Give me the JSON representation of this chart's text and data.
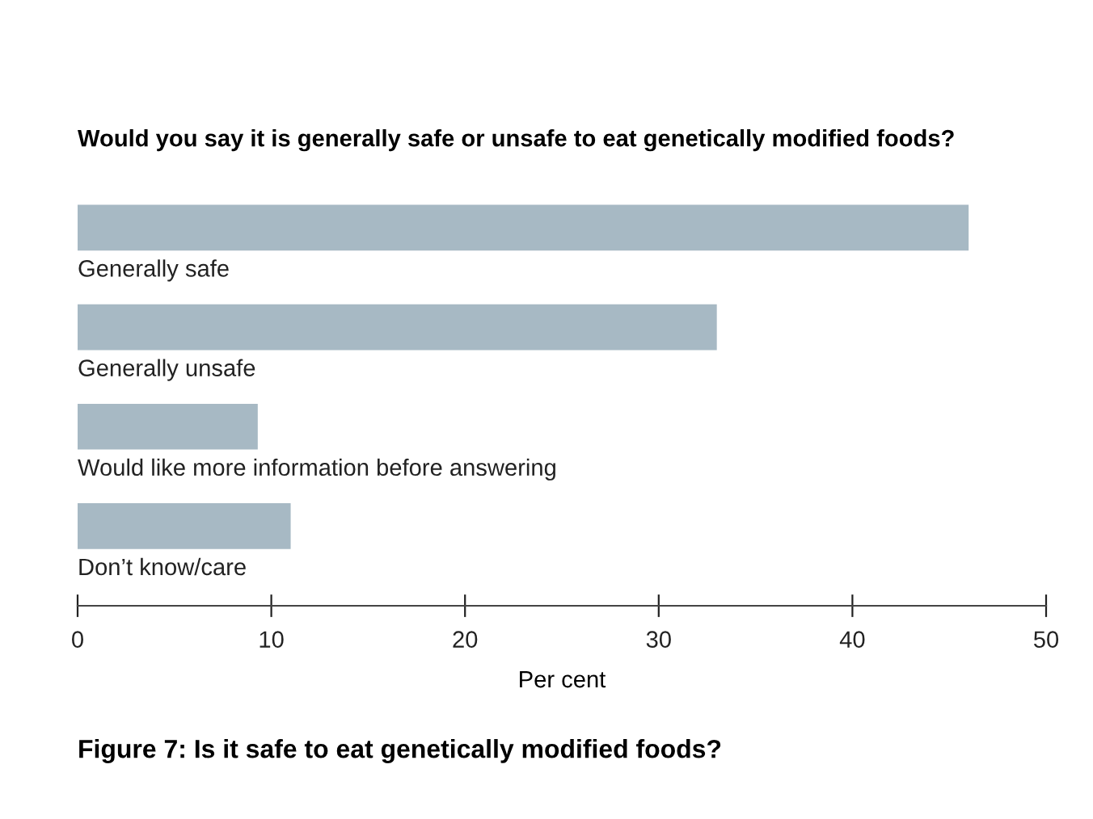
{
  "chart_data": {
    "type": "bar",
    "orientation": "horizontal",
    "title": "Would you say it is generally safe or unsafe to eat genetically modified foods?",
    "categories": [
      "Generally safe",
      "Generally unsafe",
      "Would like more information before answering",
      "Don’t know/care"
    ],
    "values": [
      46,
      33,
      9.3,
      11
    ],
    "color": "#a7b9c4",
    "xlim": [
      0,
      50
    ],
    "xticks": [
      0,
      10,
      20,
      30,
      40,
      50
    ],
    "xlabel": "Per cent",
    "tick_labels": "x",
    "grid": false,
    "legend": false,
    "annotations": [
      "Figure 7: Is it safe to eat genetically modified foods?"
    ]
  }
}
